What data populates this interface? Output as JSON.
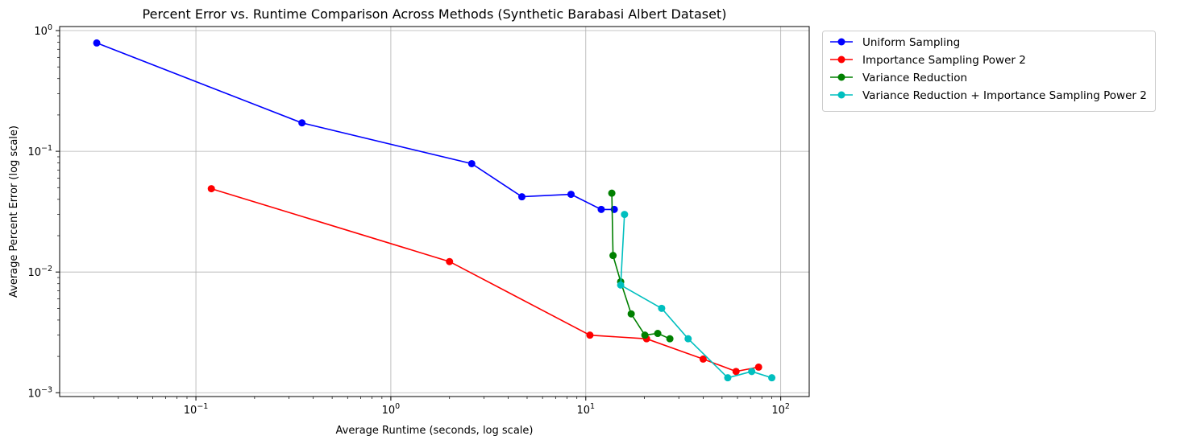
{
  "chart_data": {
    "type": "line",
    "title": "Percent Error vs. Runtime Comparison Across Methods (Synthetic Barabasi Albert Dataset)",
    "xlabel": "Average Runtime (seconds, log scale)",
    "ylabel": "Average Percent Error (log scale)",
    "x_scale": "log",
    "y_scale": "log",
    "xlim": [
      0.02,
      140
    ],
    "ylim": [
      0.00093,
      1.08
    ],
    "grid": true,
    "legend_position": "outside-top-right",
    "x_ticks": [
      {
        "value": 0.1,
        "label": "10",
        "exp": "−1"
      },
      {
        "value": 1,
        "label": "10",
        "exp": "0"
      },
      {
        "value": 10,
        "label": "10",
        "exp": "1"
      },
      {
        "value": 100,
        "label": "10",
        "exp": "2"
      }
    ],
    "y_ticks": [
      {
        "value": 0.001,
        "label": "10",
        "exp": "−3"
      },
      {
        "value": 0.01,
        "label": "10",
        "exp": "−2"
      },
      {
        "value": 0.1,
        "label": "10",
        "exp": "−1"
      },
      {
        "value": 1,
        "label": "10",
        "exp": "0"
      }
    ],
    "series": [
      {
        "name": "Uniform Sampling",
        "color": "#0000ff",
        "points": [
          [
            0.031,
            0.79
          ],
          [
            0.35,
            0.172
          ],
          [
            2.6,
            0.079
          ],
          [
            4.7,
            0.042
          ],
          [
            8.4,
            0.044
          ],
          [
            12.0,
            0.033
          ],
          [
            14.0,
            0.033
          ]
        ]
      },
      {
        "name": "Importance Sampling Power 2",
        "color": "#ff0000",
        "points": [
          [
            0.12,
            0.049
          ],
          [
            2.0,
            0.0122
          ],
          [
            10.5,
            0.003
          ],
          [
            20.5,
            0.0028
          ],
          [
            40.0,
            0.0019
          ],
          [
            59.0,
            0.0015
          ],
          [
            77.0,
            0.00163
          ]
        ]
      },
      {
        "name": "Variance Reduction",
        "color": "#008000",
        "points": [
          [
            13.6,
            0.045
          ],
          [
            13.8,
            0.0137
          ],
          [
            15.1,
            0.0083
          ],
          [
            17.1,
            0.0045
          ],
          [
            20.1,
            0.003
          ],
          [
            23.4,
            0.0031
          ],
          [
            27.0,
            0.0028
          ]
        ]
      },
      {
        "name": "Variance Reduction + Importance Sampling Power 2",
        "color": "#00bfbf",
        "points": [
          [
            15.8,
            0.03
          ],
          [
            15.1,
            0.0078
          ],
          [
            24.5,
            0.005
          ],
          [
            33.5,
            0.0028
          ],
          [
            53.5,
            0.00133
          ],
          [
            71.0,
            0.0015
          ],
          [
            90.0,
            0.00133
          ]
        ]
      }
    ]
  }
}
